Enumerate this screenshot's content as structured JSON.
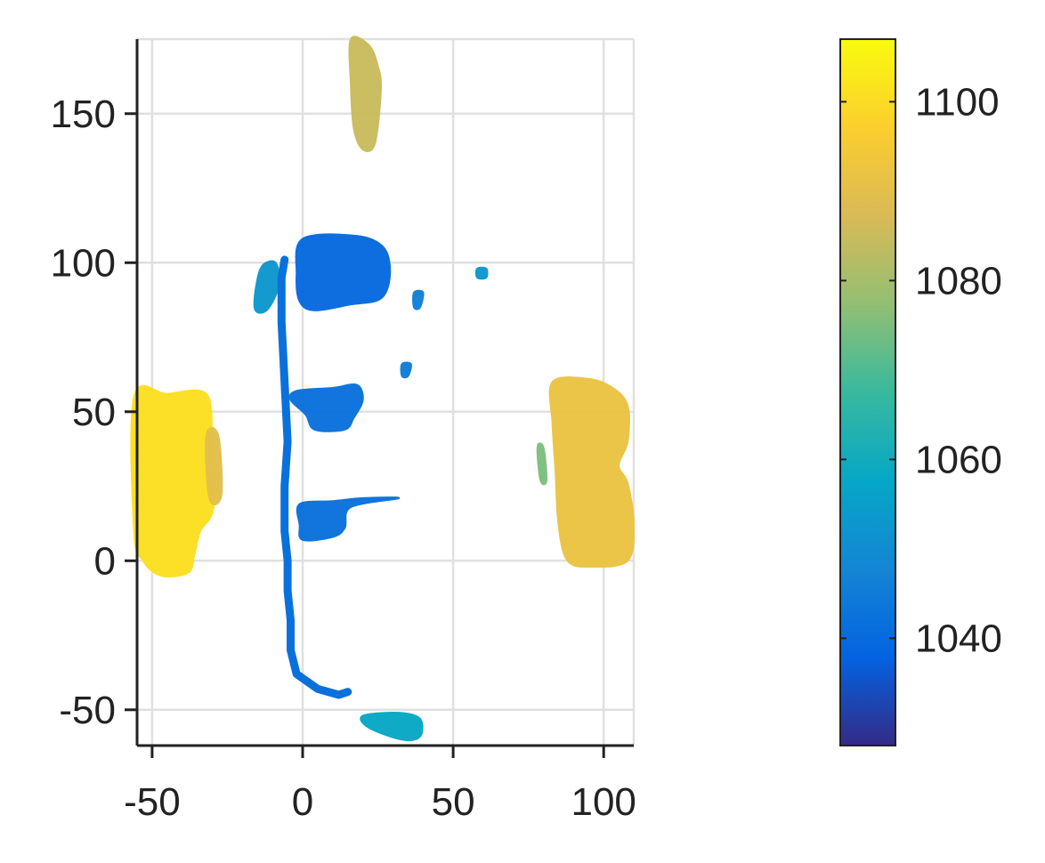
{
  "chart_data": {
    "type": "scatter",
    "title": "",
    "xlabel": "",
    "ylabel": "",
    "xlim": [
      -55,
      110
    ],
    "ylim": [
      -62,
      175
    ],
    "grid": true,
    "x_ticks": [
      -50,
      0,
      50,
      100
    ],
    "x_tick_labels": [
      "-50",
      "0",
      "50",
      "100"
    ],
    "y_ticks": [
      -50,
      0,
      50,
      100,
      150
    ],
    "y_tick_labels": [
      "-50",
      "0",
      "50",
      "100",
      "150"
    ],
    "colorbar": {
      "colormap": "parula",
      "range": [
        1028,
        1107
      ],
      "ticks": [
        1040,
        1060,
        1080,
        1100
      ],
      "tick_labels": [
        "1040",
        "1060",
        "1080",
        "1100"
      ],
      "stops": [
        "#352a87",
        "#0363e1",
        "#1485d4",
        "#06a7c6",
        "#38b99e",
        "#92bf73",
        "#d9ba56",
        "#fcce2e",
        "#f9fb0e"
      ]
    },
    "regions": [
      {
        "name": "left-block",
        "value": 1101,
        "points": [
          [
            -56,
            55
          ],
          [
            -45,
            56
          ],
          [
            -32,
            56
          ],
          [
            -30,
            40
          ],
          [
            -29,
            28
          ],
          [
            -30,
            16
          ],
          [
            -34,
            10
          ],
          [
            -36,
            2
          ],
          [
            -38,
            -4
          ],
          [
            -47,
            -5
          ],
          [
            -53,
            0
          ],
          [
            -56,
            10
          ]
        ]
      },
      {
        "name": "left-strip",
        "value": 1090,
        "points": [
          [
            -32,
            42
          ],
          [
            -28,
            42
          ],
          [
            -27,
            22
          ],
          [
            -31,
            21
          ]
        ]
      },
      {
        "name": "right-block",
        "value": 1092,
        "points": [
          [
            83,
            60
          ],
          [
            95,
            61
          ],
          [
            103,
            58
          ],
          [
            108,
            52
          ],
          [
            108,
            40
          ],
          [
            105,
            32
          ],
          [
            108,
            26
          ],
          [
            110,
            12
          ],
          [
            108,
            0
          ],
          [
            96,
            -2
          ],
          [
            88,
            0
          ],
          [
            85,
            12
          ],
          [
            84,
            30
          ],
          [
            83,
            46
          ]
        ]
      },
      {
        "name": "right-strip",
        "value": 1075,
        "points": [
          [
            78,
            38
          ],
          [
            80,
            38
          ],
          [
            81,
            27
          ],
          [
            79,
            27
          ]
        ]
      },
      {
        "name": "top-blob",
        "value": 1085,
        "points": [
          [
            16,
            175
          ],
          [
            22,
            173
          ],
          [
            25,
            166
          ],
          [
            26,
            158
          ],
          [
            24,
            140
          ],
          [
            20,
            138
          ],
          [
            17,
            145
          ],
          [
            16,
            160
          ]
        ]
      },
      {
        "name": "upper-block",
        "value": 1040,
        "points": [
          [
            0,
            108
          ],
          [
            18,
            109
          ],
          [
            27,
            105
          ],
          [
            29,
            96
          ],
          [
            26,
            88
          ],
          [
            16,
            86
          ],
          [
            4,
            84
          ],
          [
            -1,
            87
          ],
          [
            -2,
            96
          ]
        ]
      },
      {
        "name": "upper-left-arm",
        "value": 1053,
        "points": [
          [
            -14,
            98
          ],
          [
            -9,
            100
          ],
          [
            -8,
            92
          ],
          [
            -12,
            84
          ],
          [
            -16,
            85
          ]
        ]
      },
      {
        "name": "middle-block",
        "value": 1042,
        "points": [
          [
            -2,
            57
          ],
          [
            10,
            58
          ],
          [
            18,
            59
          ],
          [
            20,
            54
          ],
          [
            17,
            48
          ],
          [
            14,
            44
          ],
          [
            4,
            44
          ],
          [
            1,
            49
          ],
          [
            -4,
            54
          ]
        ]
      },
      {
        "name": "lower-block",
        "value": 1042,
        "points": [
          [
            -1,
            19
          ],
          [
            10,
            20
          ],
          [
            20,
            21
          ],
          [
            32,
            21
          ],
          [
            16,
            18
          ],
          [
            14,
            11
          ],
          [
            10,
            8
          ],
          [
            0,
            7
          ],
          [
            -1,
            12
          ]
        ]
      },
      {
        "name": "bottom-blob",
        "value": 1058,
        "points": [
          [
            20,
            -52
          ],
          [
            32,
            -51
          ],
          [
            39,
            -53
          ],
          [
            39,
            -59
          ],
          [
            33,
            -60
          ],
          [
            22,
            -56
          ]
        ]
      },
      {
        "name": "right-dot",
        "value": 1053,
        "points": [
          [
            58,
            98
          ],
          [
            61,
            98
          ],
          [
            61,
            95
          ],
          [
            58,
            95
          ]
        ]
      },
      {
        "name": "small-blob-a",
        "value": 1046,
        "points": [
          [
            37,
            90
          ],
          [
            40,
            90
          ],
          [
            39,
            85
          ],
          [
            37,
            85
          ]
        ]
      },
      {
        "name": "small-blob-b",
        "value": 1045,
        "points": [
          [
            33,
            66
          ],
          [
            36,
            66
          ],
          [
            35,
            62
          ],
          [
            33,
            62
          ]
        ]
      }
    ],
    "trajectory": {
      "value": 1042,
      "points": [
        [
          -6,
          101
        ],
        [
          -7,
          95
        ],
        [
          -7,
          80
        ],
        [
          -6,
          60
        ],
        [
          -5,
          40
        ],
        [
          -6,
          25
        ],
        [
          -6,
          10
        ],
        [
          -5,
          0
        ],
        [
          -5,
          -10
        ],
        [
          -4,
          -20
        ],
        [
          -4,
          -30
        ],
        [
          -2,
          -38
        ],
        [
          5,
          -43
        ],
        [
          12,
          -45
        ],
        [
          15,
          -44
        ]
      ]
    }
  }
}
